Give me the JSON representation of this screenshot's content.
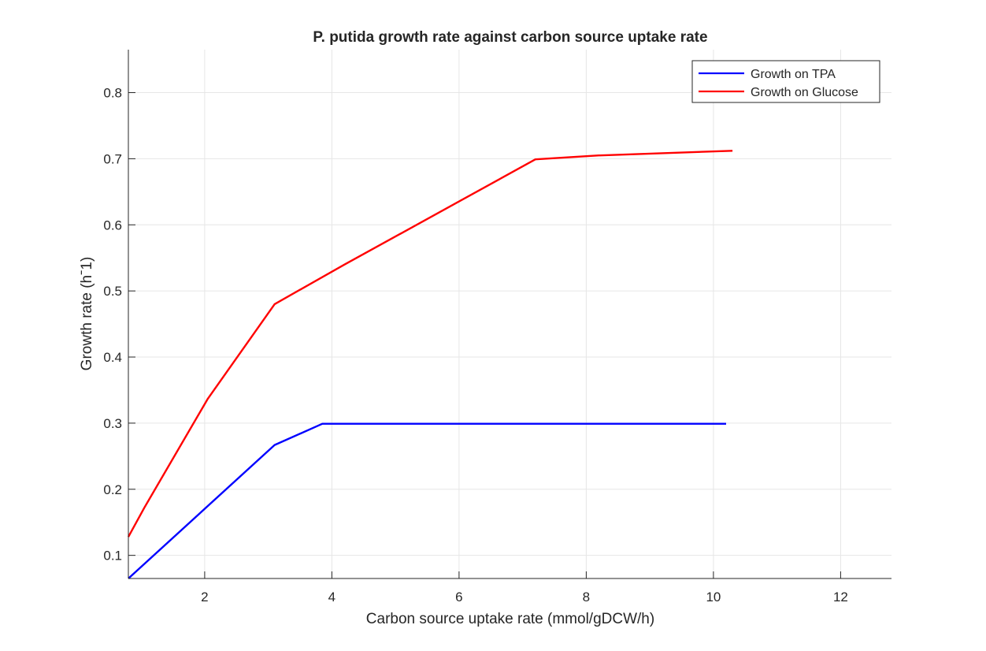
{
  "chart_data": {
    "type": "line",
    "title": "P. putida growth rate against carbon source uptake rate",
    "xlabel": "Carbon source uptake rate (mmol/gDCW/h)",
    "ylabel": "Growth rate (hˉ1)",
    "xlim": [
      0.8,
      12.8
    ],
    "ylim": [
      0.065,
      0.865
    ],
    "xticks": [
      2,
      4,
      6,
      8,
      10,
      12
    ],
    "yticks": [
      0.1,
      0.2,
      0.3,
      0.4,
      0.5,
      0.6,
      0.7,
      0.8
    ],
    "xtick_labels": [
      "2",
      "4",
      "6",
      "8",
      "10",
      "12"
    ],
    "ytick_labels": [
      "0.1",
      "0.2",
      "0.3",
      "0.4",
      "0.5",
      "0.6",
      "0.7",
      "0.8"
    ],
    "grid": true,
    "legend_position": "top-right",
    "series": [
      {
        "name": "Growth on TPA",
        "color": "#0000ff",
        "x": [
          0.8,
          3.1,
          3.85,
          10.2
        ],
        "y": [
          0.065,
          0.267,
          0.299,
          0.299
        ]
      },
      {
        "name": "Growth on Glucose",
        "color": "#ff0000",
        "x": [
          0.8,
          1.05,
          2.05,
          3.1,
          4.2,
          7.2,
          8.2,
          10.3
        ],
        "y": [
          0.128,
          0.172,
          0.337,
          0.48,
          0.54,
          0.699,
          0.705,
          0.712
        ]
      }
    ]
  }
}
